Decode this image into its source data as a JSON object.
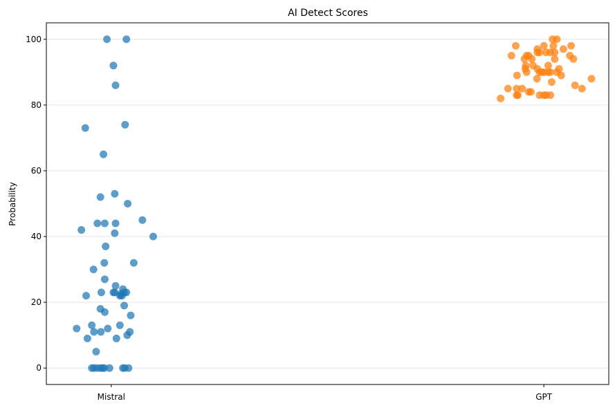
{
  "chart_data": {
    "type": "scatter",
    "title": "AI Detect Scores",
    "xlabel": "",
    "ylabel": "Probability",
    "categories": [
      "Mistral",
      "GPT"
    ],
    "ylim": [
      -5,
      105
    ],
    "yticks": [
      0,
      20,
      40,
      60,
      80,
      100
    ],
    "grid": "horizontal",
    "series": [
      {
        "name": "Mistral",
        "color": "#1f77b4",
        "points": [
          {
            "x": -0.01,
            "y": 100
          },
          {
            "x": 0.035,
            "y": 100
          },
          {
            "x": 0.005,
            "y": 92
          },
          {
            "x": 0.01,
            "y": 86
          },
          {
            "x": -0.06,
            "y": 73
          },
          {
            "x": 0.032,
            "y": 74
          },
          {
            "x": -0.018,
            "y": 65
          },
          {
            "x": 0.008,
            "y": 53
          },
          {
            "x": -0.025,
            "y": 52
          },
          {
            "x": 0.038,
            "y": 50
          },
          {
            "x": -0.069,
            "y": 42
          },
          {
            "x": -0.032,
            "y": 44
          },
          {
            "x": -0.015,
            "y": 44
          },
          {
            "x": 0.01,
            "y": 44
          },
          {
            "x": 0.072,
            "y": 45
          },
          {
            "x": 0.097,
            "y": 40
          },
          {
            "x": 0.008,
            "y": 41
          },
          {
            "x": -0.013,
            "y": 37
          },
          {
            "x": -0.041,
            "y": 30
          },
          {
            "x": -0.016,
            "y": 32
          },
          {
            "x": 0.052,
            "y": 32
          },
          {
            "x": -0.015,
            "y": 27
          },
          {
            "x": 0.01,
            "y": 25
          },
          {
            "x": 0.027,
            "y": 24
          },
          {
            "x": -0.058,
            "y": 22
          },
          {
            "x": -0.023,
            "y": 23
          },
          {
            "x": 0.005,
            "y": 23
          },
          {
            "x": 0.008,
            "y": 23
          },
          {
            "x": 0.02,
            "y": 22
          },
          {
            "x": 0.025,
            "y": 22
          },
          {
            "x": 0.03,
            "y": 23
          },
          {
            "x": 0.035,
            "y": 23
          },
          {
            "x": 0.022,
            "y": 22.5
          },
          {
            "x": 0.03,
            "y": 19
          },
          {
            "x": -0.025,
            "y": 18
          },
          {
            "x": -0.015,
            "y": 17
          },
          {
            "x": 0.045,
            "y": 16
          },
          {
            "x": -0.08,
            "y": 12
          },
          {
            "x": -0.045,
            "y": 13
          },
          {
            "x": -0.008,
            "y": 12
          },
          {
            "x": 0.02,
            "y": 13
          },
          {
            "x": -0.04,
            "y": 11
          },
          {
            "x": -0.024,
            "y": 11
          },
          {
            "x": 0.043,
            "y": 11
          },
          {
            "x": 0.037,
            "y": 10
          },
          {
            "x": -0.055,
            "y": 9
          },
          {
            "x": 0.012,
            "y": 9
          },
          {
            "x": -0.035,
            "y": 5
          },
          {
            "x": -0.045,
            "y": 0
          },
          {
            "x": -0.04,
            "y": 0
          },
          {
            "x": -0.033,
            "y": 0
          },
          {
            "x": -0.025,
            "y": 0
          },
          {
            "x": -0.02,
            "y": 0
          },
          {
            "x": -0.016,
            "y": 0
          },
          {
            "x": -0.004,
            "y": 0
          },
          {
            "x": 0.027,
            "y": 0
          },
          {
            "x": 0.031,
            "y": 0
          },
          {
            "x": 0.04,
            "y": 0
          }
        ]
      },
      {
        "name": "GPT",
        "color": "#ff7f0e",
        "points": [
          {
            "x": 0.02,
            "y": 100
          },
          {
            "x": 0.03,
            "y": 100
          },
          {
            "x": 0.0,
            "y": 98
          },
          {
            "x": 0.022,
            "y": 98
          },
          {
            "x": 0.063,
            "y": 98
          },
          {
            "x": -0.065,
            "y": 98
          },
          {
            "x": -0.015,
            "y": 97
          },
          {
            "x": 0.045,
            "y": 97
          },
          {
            "x": -0.075,
            "y": 95
          },
          {
            "x": -0.04,
            "y": 95
          },
          {
            "x": -0.035,
            "y": 95
          },
          {
            "x": -0.015,
            "y": 96
          },
          {
            "x": -0.01,
            "y": 96
          },
          {
            "x": 0.005,
            "y": 96
          },
          {
            "x": 0.015,
            "y": 96
          },
          {
            "x": 0.025,
            "y": 96
          },
          {
            "x": 0.06,
            "y": 95
          },
          {
            "x": 0.068,
            "y": 94
          },
          {
            "x": 0.025,
            "y": 94
          },
          {
            "x": -0.045,
            "y": 94
          },
          {
            "x": -0.028,
            "y": 94
          },
          {
            "x": -0.042,
            "y": 92
          },
          {
            "x": -0.025,
            "y": 92
          },
          {
            "x": 0.01,
            "y": 92
          },
          {
            "x": -0.043,
            "y": 91
          },
          {
            "x": -0.015,
            "y": 91
          },
          {
            "x": 0.035,
            "y": 91
          },
          {
            "x": -0.04,
            "y": 90
          },
          {
            "x": -0.01,
            "y": 90
          },
          {
            "x": -0.005,
            "y": 90
          },
          {
            "x": 0.0,
            "y": 90
          },
          {
            "x": 0.01,
            "y": 90
          },
          {
            "x": 0.015,
            "y": 90
          },
          {
            "x": 0.03,
            "y": 90
          },
          {
            "x": 0.04,
            "y": 89
          },
          {
            "x": -0.062,
            "y": 89
          },
          {
            "x": -0.016,
            "y": 88
          },
          {
            "x": 0.018,
            "y": 87
          },
          {
            "x": 0.11,
            "y": 88
          },
          {
            "x": 0.072,
            "y": 86
          },
          {
            "x": 0.088,
            "y": 85
          },
          {
            "x": -0.083,
            "y": 85
          },
          {
            "x": -0.063,
            "y": 85
          },
          {
            "x": -0.05,
            "y": 85
          },
          {
            "x": -0.035,
            "y": 84
          },
          {
            "x": -0.03,
            "y": 84
          },
          {
            "x": -0.063,
            "y": 83
          },
          {
            "x": -0.06,
            "y": 83
          },
          {
            "x": -0.01,
            "y": 83
          },
          {
            "x": 0.0,
            "y": 83
          },
          {
            "x": 0.005,
            "y": 83
          },
          {
            "x": 0.015,
            "y": 83
          },
          {
            "x": -0.1,
            "y": 82
          }
        ]
      }
    ]
  }
}
